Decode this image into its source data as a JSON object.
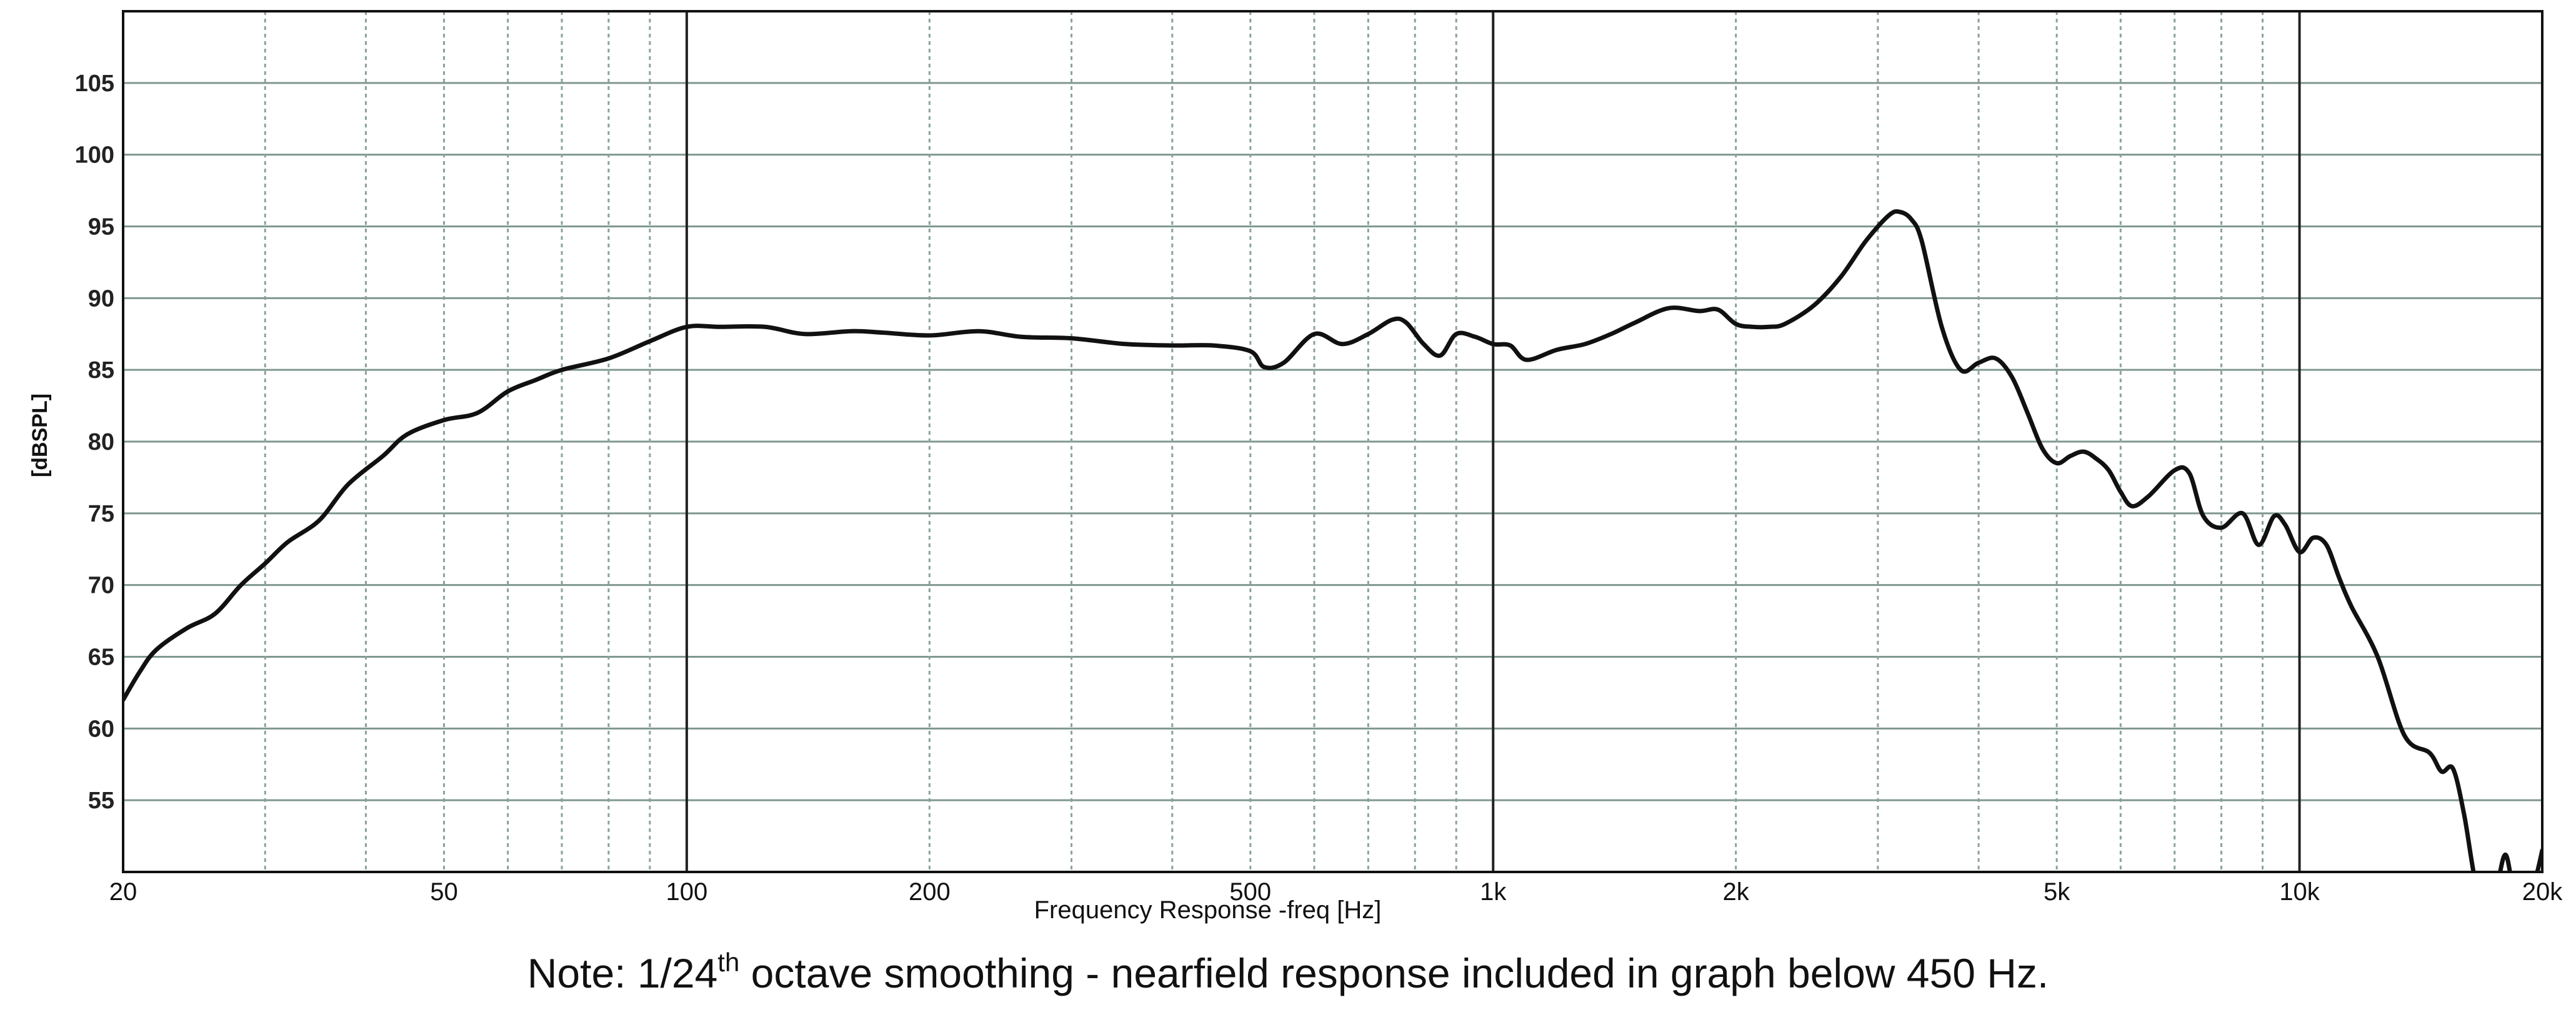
{
  "chart_data": {
    "type": "line",
    "xlabel": "Frequency Response -freq [Hz]",
    "ylabel": "[dBSPL]",
    "x_scale": "log",
    "xlim": [
      20,
      20000
    ],
    "ylim": [
      50,
      110
    ],
    "grid": true,
    "y_ticks": [
      55,
      60,
      65,
      70,
      75,
      80,
      85,
      90,
      95,
      100,
      105
    ],
    "x_ticks": [
      {
        "value": 20,
        "label": "20"
      },
      {
        "value": 50,
        "label": "50"
      },
      {
        "value": 100,
        "label": "100"
      },
      {
        "value": 200,
        "label": "200"
      },
      {
        "value": 500,
        "label": "500"
      },
      {
        "value": 1000,
        "label": "1k"
      },
      {
        "value": 2000,
        "label": "2k"
      },
      {
        "value": 5000,
        "label": "5k"
      },
      {
        "value": 10000,
        "label": "10k"
      },
      {
        "value": 20000,
        "label": "20k"
      }
    ],
    "series": [
      {
        "x": [
          20,
          21,
          22,
          24,
          26,
          28,
          30,
          32,
          35,
          38,
          42,
          45,
          50,
          55,
          60,
          65,
          70,
          80,
          90,
          100,
          110,
          125,
          140,
          160,
          175,
          200,
          230,
          260,
          300,
          350,
          400,
          450,
          500,
          520,
          550,
          600,
          650,
          700,
          750,
          780,
          820,
          860,
          900,
          950,
          1000,
          1050,
          1100,
          1200,
          1300,
          1400,
          1500,
          1650,
          1800,
          1900,
          2000,
          2100,
          2200,
          2300,
          2500,
          2700,
          2900,
          3100,
          3200,
          3300,
          3400,
          3600,
          3800,
          4000,
          4200,
          4400,
          4600,
          4800,
          5000,
          5200,
          5400,
          5600,
          5800,
          6000,
          6200,
          6500,
          7000,
          7300,
          7600,
          8000,
          8500,
          8900,
          9300,
          9600,
          10000,
          10400,
          10800,
          11200,
          11600,
          12500,
          13500,
          14500,
          15000,
          15500,
          16000,
          16500,
          17000,
          17500,
          18000,
          18500,
          19200,
          19600,
          20000
        ],
        "values": [
          62,
          64,
          65.5,
          67,
          68,
          70,
          71.5,
          73,
          74.5,
          77,
          79,
          80.5,
          81.5,
          82,
          83.5,
          84.3,
          85,
          85.8,
          87,
          88,
          88,
          88,
          87.5,
          87.7,
          87.6,
          87.4,
          87.7,
          87.3,
          87.2,
          86.8,
          86.7,
          86.7,
          86.3,
          85.2,
          85.5,
          87.5,
          86.8,
          87.5,
          88.5,
          88.3,
          86.8,
          86.0,
          87.5,
          87.3,
          86.8,
          86.7,
          85.7,
          86.4,
          86.8,
          87.5,
          88.3,
          89.3,
          89.1,
          89.2,
          88.2,
          88.0,
          88.0,
          88.2,
          89.5,
          91.5,
          94.0,
          95.8,
          96.0,
          95.5,
          94.0,
          88.0,
          85.0,
          85.5,
          85.8,
          84.5,
          82.0,
          79.5,
          78.5,
          79.0,
          79.3,
          78.8,
          78.0,
          76.5,
          75.5,
          76.2,
          78.0,
          77.8,
          74.8,
          74.0,
          75.0,
          72.8,
          74.8,
          74.2,
          72.3,
          73.3,
          72.8,
          70.5,
          68.5,
          65.0,
          59.5,
          58.3,
          57.0,
          57.2,
          54.0,
          49.5,
          47.0,
          48.5,
          51.2,
          48.5,
          48.8,
          49.5,
          51.5
        ]
      }
    ]
  },
  "note": {
    "prefix": "Note: 1/24",
    "sup": "th",
    "suffix": "octave smoothing - nearfield response included in graph below 450 Hz."
  },
  "colors": {
    "curve": "#111111",
    "major_grid": "#222222",
    "minor_grid": "#8aa39a",
    "hgrid": "#7f9791",
    "frame": "#111111"
  }
}
